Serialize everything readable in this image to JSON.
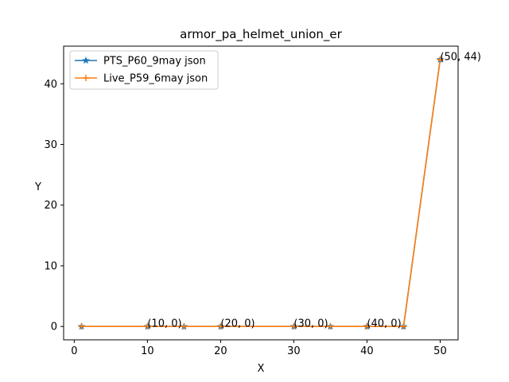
{
  "chart_data": {
    "type": "line",
    "title": "armor_pa_helmet_union_er",
    "xlabel": "X",
    "ylabel": "Y",
    "xlim": [
      -1.45,
      52.45
    ],
    "ylim": [
      -2.2,
      46.2
    ],
    "xticks": [
      0,
      10,
      20,
      30,
      40,
      50
    ],
    "yticks": [
      0,
      10,
      20,
      30,
      40
    ],
    "x": [
      1,
      10,
      15,
      20,
      30,
      35,
      40,
      45,
      50
    ],
    "series": [
      {
        "name": "PTS_P60_9may json",
        "color": "#1f77b4",
        "marker": "star",
        "values": [
          0,
          0,
          0,
          0,
          0,
          0,
          0,
          0,
          44
        ]
      },
      {
        "name": "Live_P59_6may json",
        "color": "#ff7f0e",
        "marker": "plus",
        "values": [
          0,
          0,
          0,
          0,
          0,
          0,
          0,
          0,
          44
        ]
      }
    ],
    "annotations": [
      {
        "x": 10,
        "y": 0,
        "text": "(10, 0)"
      },
      {
        "x": 20,
        "y": 0,
        "text": "(20, 0)"
      },
      {
        "x": 30,
        "y": 0,
        "text": "(30, 0)"
      },
      {
        "x": 40,
        "y": 0,
        "text": "(40, 0)"
      },
      {
        "x": 50,
        "y": 44,
        "text": "(50, 44)"
      }
    ],
    "legend": "top-left",
    "grid": false
  }
}
